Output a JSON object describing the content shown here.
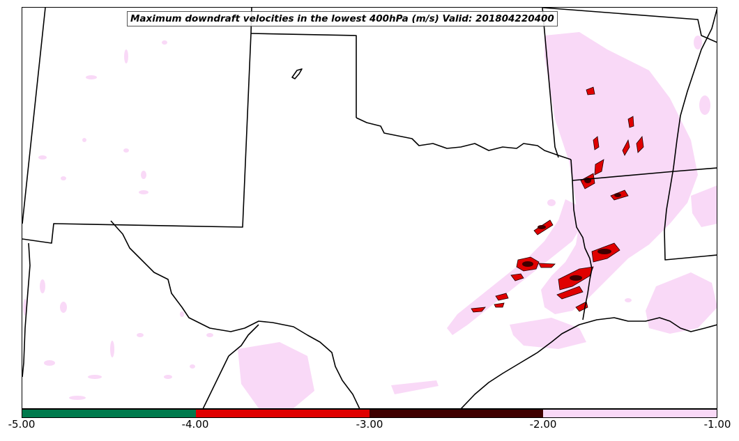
{
  "title": "Maximum downdraft velocities in the lowest 400hPa (m/s) Valid: 201804220400",
  "colorbar": {
    "ticks": [
      "-5.00",
      "-4.00",
      "-3.00",
      "-2.00",
      "-1.00"
    ],
    "bins": [
      {
        "range": [
          -5.0,
          -4.0
        ],
        "color": "#007a4d"
      },
      {
        "range": [
          -4.0,
          -3.0
        ],
        "color": "#e00000"
      },
      {
        "range": [
          -3.0,
          -2.0
        ],
        "color": "#3f0000"
      },
      {
        "range": [
          -2.0,
          -1.0
        ],
        "color": "#f9d9f7"
      }
    ]
  },
  "colors": {
    "weak_downdraft": "#f9d9f7",
    "moderate_downdraft": "#e00000",
    "strong_downdraft": "#3f0000",
    "borders": "#000000"
  }
}
